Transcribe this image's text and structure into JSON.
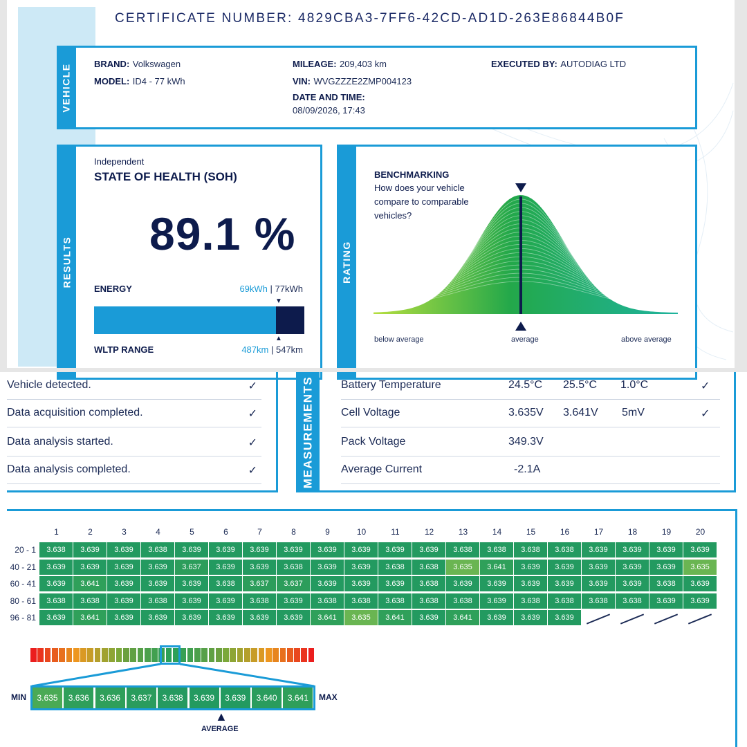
{
  "certificate": {
    "label": "CERTIFICATE NUMBER:",
    "number": "4829CBA3-7FF6-42CD-AD1D-263E86844B0F"
  },
  "vehicle": {
    "tab": "VEHICLE",
    "brand_label": "BRAND:",
    "brand": "Volkswagen",
    "model_label": "MODEL:",
    "model": "ID4 - 77 kWh",
    "mileage_label": "MILEAGE:",
    "mileage": "209,403 km",
    "vin_label": "VIN:",
    "vin": "WVGZZZE2ZMP004123",
    "datetime_label": "DATE AND TIME:",
    "datetime": "08/09/2026, 17:43",
    "executed_label": "EXECUTED BY:",
    "executed": "AUTODIAG LTD"
  },
  "results": {
    "tab": "RESULTS",
    "subtitle": "Independent",
    "title": "STATE OF HEALTH (SOH)",
    "soh": "89.1 %",
    "energy_label": "ENERGY",
    "energy_current": "69kWh",
    "energy_sep": " | ",
    "energy_total": "77kWh",
    "range_label": "WLTP RANGE",
    "range_current": "487km",
    "range_sep": " | ",
    "range_total": "547km",
    "bar_fraction": 0.891,
    "bar_color": "#1a9bd7",
    "bar_rest_color": "#0d1b4c"
  },
  "rating": {
    "tab": "RATING",
    "title": "BENCHMARKING",
    "question_lines": [
      "How does your vehicle",
      "compare to comparable",
      "vehicles?"
    ],
    "below": "below average",
    "average": "average",
    "above": "above average",
    "marker_position": "average"
  },
  "steps": [
    {
      "text": "Vehicle detected.",
      "check": "✓"
    },
    {
      "text": "Data acquisition completed.",
      "check": "✓"
    },
    {
      "text": "Data analysis started.",
      "check": "✓"
    },
    {
      "text": "Data analysis completed.",
      "check": "✓"
    }
  ],
  "measurements": {
    "tab": "MEASUREMENTS",
    "rows": [
      {
        "name": "Battery Temperature",
        "v1": "24.5°C",
        "v2": "25.5°C",
        "v3": "1.0°C",
        "check": "✓"
      },
      {
        "name": "Cell Voltage",
        "v1": "3.635V",
        "v2": "3.641V",
        "v3": "5mV",
        "check": "✓"
      },
      {
        "name": "Pack Voltage",
        "v1": "349.3V",
        "v2": "",
        "v3": "",
        "check": ""
      },
      {
        "name": "Average Current",
        "v1": "-2.1A",
        "v2": "",
        "v3": "",
        "check": ""
      }
    ]
  },
  "cells": {
    "columns": [
      "1",
      "2",
      "3",
      "4",
      "5",
      "6",
      "7",
      "8",
      "9",
      "10",
      "11",
      "12",
      "13",
      "14",
      "15",
      "16",
      "17",
      "18",
      "19",
      "20"
    ],
    "row_labels": [
      "1 - 20",
      "21 - 40",
      "41 - 60",
      "61 - 80",
      "81 - 96"
    ],
    "values": [
      [
        "3.638",
        "3.639",
        "3.639",
        "3.638",
        "3.639",
        "3.639",
        "3.639",
        "3.639",
        "3.639",
        "3.639",
        "3.639",
        "3.639",
        "3.638",
        "3.638",
        "3.638",
        "3.638",
        "3.639",
        "3.639",
        "3.639",
        "3.639"
      ],
      [
        "3.639",
        "3.639",
        "3.639",
        "3.639",
        "3.637",
        "3.639",
        "3.639",
        "3.638",
        "3.639",
        "3.639",
        "3.638",
        "3.638",
        "3.635",
        "3.641",
        "3.639",
        "3.639",
        "3.639",
        "3.639",
        "3.639",
        "3.635"
      ],
      [
        "3.639",
        "3.641",
        "3.639",
        "3.639",
        "3.639",
        "3.638",
        "3.637",
        "3.637",
        "3.639",
        "3.639",
        "3.639",
        "3.638",
        "3.639",
        "3.639",
        "3.639",
        "3.639",
        "3.639",
        "3.639",
        "3.638",
        "3.639"
      ],
      [
        "3.638",
        "3.638",
        "3.639",
        "3.638",
        "3.639",
        "3.639",
        "3.638",
        "3.639",
        "3.638",
        "3.638",
        "3.638",
        "3.638",
        "3.638",
        "3.639",
        "3.638",
        "3.638",
        "3.638",
        "3.638",
        "3.639",
        "3.639"
      ],
      [
        "3.639",
        "3.641",
        "3.639",
        "3.639",
        "3.639",
        "3.639",
        "3.639",
        "3.639",
        "3.641",
        "3.635",
        "3.641",
        "3.639",
        "3.641",
        "3.639",
        "3.639",
        "3.639"
      ]
    ]
  },
  "scale": {
    "min_label": "MIN",
    "max_label": "MAX",
    "average_label": "AVERAGE",
    "values": [
      "3.635",
      "3.636",
      "3.636",
      "3.637",
      "3.638",
      "3.639",
      "3.639",
      "3.640",
      "3.641"
    ],
    "colors": [
      "#4aaa55",
      "#2f9f5a",
      "#2f9f5a",
      "#2a9c5d",
      "#259a60",
      "#239a60",
      "#239a60",
      "#2a9c5d",
      "#2f9f5a"
    ]
  }
}
